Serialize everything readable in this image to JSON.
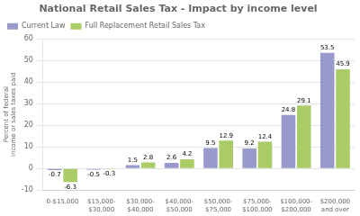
{
  "chart_data": {
    "type": "bar",
    "title": "National Retail Sales Tax - Impact by income level",
    "ylabel": "Percent of federal\nincome or sales taxes paid",
    "categories": [
      "0-$15,000",
      "$15,000-\n$30,000",
      "$30,000-\n$40,000",
      "$40,000-\n$50,000",
      "$50,000-\n$75,000",
      "$75,000-\n$100,000",
      "$100,000-\n$200,000",
      "$200,000\nand over"
    ],
    "series": [
      {
        "name": "Current Law",
        "color": "#9999cc",
        "values": [
          -0.7,
          -0.5,
          1.5,
          2.6,
          9.5,
          9.2,
          24.8,
          53.5
        ]
      },
      {
        "name": "Full Replacement Retail Sales Tax",
        "color": "#aacc66",
        "values": [
          -6.3,
          -0.3,
          2.8,
          4.2,
          12.9,
          12.4,
          29.1,
          45.9
        ]
      }
    ],
    "ylim": [
      -10,
      60
    ],
    "yticks": [
      -10,
      0,
      10,
      20,
      30,
      40,
      50,
      60
    ],
    "grid": true,
    "legend": "upper left",
    "data_labels": true
  }
}
